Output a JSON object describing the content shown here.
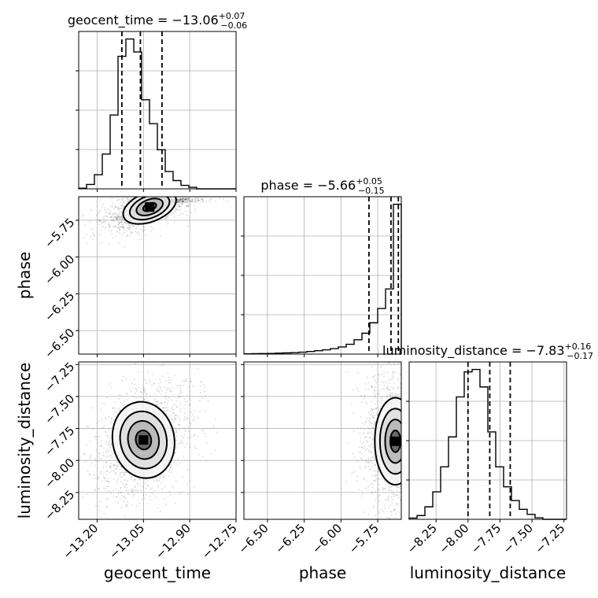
{
  "chart_data": {
    "type": "corner",
    "parameters": [
      {
        "name": "geocent_time",
        "label": "geocent_time",
        "title": {
          "prefix": "geocent_time = ",
          "value": "−13.06",
          "plus": "+0.07",
          "minus": "−0.06"
        },
        "median": -13.06,
        "q16": -13.12,
        "q84": -12.99,
        "range": [
          -13.26,
          -12.75
        ],
        "ticks": [
          -13.2,
          -13.05,
          -12.9,
          -12.75
        ],
        "tick_labels": [
          "−13.20",
          "−13.05",
          "−12.90",
          "−12.75"
        ],
        "hist_edges_start": -13.26,
        "hist_bin_width": 0.0255,
        "hist_counts": [
          0.3,
          2,
          6.5,
          16,
          34,
          61,
          69,
          63,
          41,
          30,
          18,
          8,
          3.8,
          1.6,
          0.7,
          0,
          0,
          0,
          0,
          0
        ]
      },
      {
        "name": "phase",
        "label": "phase",
        "title": {
          "prefix": "phase = ",
          "value": "−5.66",
          "plus": "+0.05",
          "minus": "−0.15"
        },
        "median": -5.66,
        "q16": -5.81,
        "q84": -5.61,
        "range": [
          -6.66,
          -5.59
        ],
        "ticks": [
          -6.5,
          -6.25,
          -6.0,
          -5.75
        ],
        "tick_labels": [
          "−6.50",
          "−6.25",
          "−6.00",
          "−5.75"
        ],
        "hist_edges_start": -6.66,
        "hist_bin_width": 0.0535,
        "hist_counts": [
          0.2,
          0.3,
          0.4,
          0.5,
          0.7,
          0.9,
          1.1,
          1.5,
          2,
          2.6,
          3.3,
          4.2,
          5.5,
          7.5,
          11,
          16,
          24,
          35,
          50,
          115
        ]
      },
      {
        "name": "luminosity_distance",
        "label": "luminosity_distance",
        "title": {
          "prefix": "luminosity_distance = ",
          "value": "−7.83",
          "plus": "+0.16",
          "minus": "−0.17"
        },
        "median": -7.83,
        "q16": -8.0,
        "q84": -7.67,
        "range": [
          -8.46,
          -7.23
        ],
        "ticks": [
          -8.25,
          -8.0,
          -7.75,
          -7.5,
          -7.25
        ],
        "tick_labels": [
          "−8.25",
          "−8.00",
          "−7.75",
          "−7.50",
          "−7.25"
        ],
        "hist_edges_start": -8.46,
        "hist_bin_width": 0.0615,
        "hist_counts": [
          0.5,
          1.5,
          5,
          11,
          21,
          33,
          49,
          59,
          60,
          53,
          35,
          21,
          13,
          7.5,
          4,
          2,
          0.6,
          0,
          0,
          0
        ]
      }
    ],
    "pairs": [
      {
        "x": "geocent_time",
        "y": "phase",
        "peak": [
          -13.03,
          -5.66
        ],
        "sigma": [
          0.045,
          0.05
        ],
        "tilt": 0.6
      },
      {
        "x": "geocent_time",
        "y": "luminosity_distance",
        "peak": [
          -13.05,
          -7.84
        ],
        "sigma": [
          0.05,
          0.15
        ],
        "tilt": 0.3
      },
      {
        "x": "phase",
        "y": "luminosity_distance",
        "peak": [
          -5.63,
          -7.85
        ],
        "sigma": [
          0.07,
          0.17
        ],
        "tilt": 0.0
      }
    ],
    "grid": true,
    "quantile_style": "dashed"
  }
}
